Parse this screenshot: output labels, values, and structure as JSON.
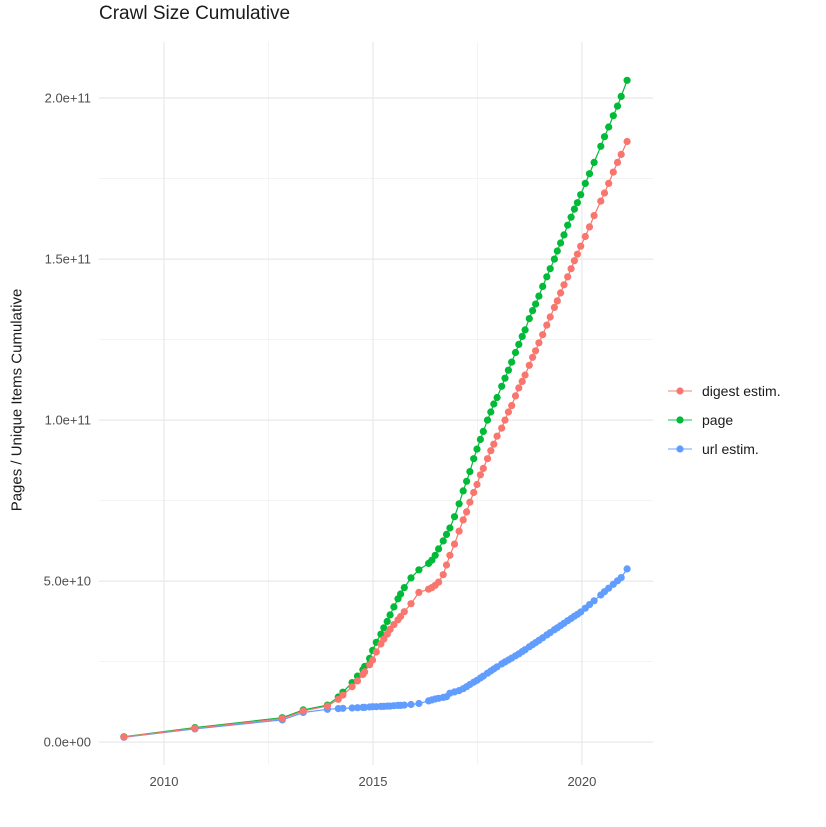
{
  "chart_data": {
    "type": "scatter",
    "title": "Crawl Size Cumulative",
    "xlabel": "",
    "ylabel": "Pages / Unique Items Cumulative",
    "legend_position": "right-center",
    "grid": "major and minor gridlines, light gray on white panel",
    "values_unit": "listed value times 1e9 items",
    "x_domain": [
      2008.445,
      2021.7
    ],
    "y_domain_e9": [
      -7.1,
      217.4
    ],
    "x_ticks": [
      2010,
      2015,
      2020
    ],
    "x_tick_labels": [
      "2010",
      "2015",
      "2020"
    ],
    "x_minor_ticks": [
      2012.5,
      2017.5
    ],
    "y_ticks_e9": [
      0,
      50,
      100,
      150,
      200
    ],
    "y_tick_labels": [
      "0.0e+00",
      "5.0e+10",
      "1.0e+11",
      "1.5e+11",
      "2.0e+11"
    ],
    "y_minor_ticks_e9": [
      25,
      75,
      125,
      175
    ],
    "colors": {
      "axis_text": "#4d4d4d",
      "grid_major": "#e8e8e8",
      "grid_minor": "#f3f3f3"
    },
    "series": [
      {
        "name": "digest estim.",
        "color": "#F8766D",
        "points": [
          [
            2009.04,
            1.6
          ],
          [
            2010.74,
            4.3
          ],
          [
            2012.83,
            7.3
          ],
          [
            2013.33,
            9.7
          ],
          [
            2013.91,
            11.2
          ],
          [
            2014.17,
            13.3
          ],
          [
            2014.28,
            14.6
          ],
          [
            2014.5,
            17.2
          ],
          [
            2014.63,
            19
          ],
          [
            2014.76,
            21
          ],
          [
            2014.8,
            21.8
          ],
          [
            2014.92,
            24
          ],
          [
            2014.99,
            25.5
          ],
          [
            2015.08,
            28
          ],
          [
            2015.19,
            30.5
          ],
          [
            2015.26,
            32
          ],
          [
            2015.34,
            33.5
          ],
          [
            2015.41,
            35
          ],
          [
            2015.5,
            36.5
          ],
          [
            2015.6,
            38
          ],
          [
            2015.66,
            39
          ],
          [
            2015.75,
            40.5
          ],
          [
            2015.91,
            43
          ],
          [
            2016.1,
            46.5
          ],
          [
            2016.33,
            47.5
          ],
          [
            2016.41,
            48
          ],
          [
            2016.49,
            48.7
          ],
          [
            2016.57,
            49.7
          ],
          [
            2016.68,
            52
          ],
          [
            2016.76,
            55
          ],
          [
            2016.84,
            58
          ],
          [
            2016.95,
            61.5
          ],
          [
            2017.06,
            65.5
          ],
          [
            2017.16,
            69
          ],
          [
            2017.24,
            71.5
          ],
          [
            2017.32,
            74.5
          ],
          [
            2017.41,
            77.5
          ],
          [
            2017.49,
            80
          ],
          [
            2017.57,
            83
          ],
          [
            2017.64,
            85
          ],
          [
            2017.74,
            88
          ],
          [
            2017.82,
            90.5
          ],
          [
            2017.89,
            92.5
          ],
          [
            2017.97,
            95
          ],
          [
            2018.08,
            97.5
          ],
          [
            2018.16,
            100
          ],
          [
            2018.24,
            102.5
          ],
          [
            2018.32,
            104.5
          ],
          [
            2018.41,
            107.5
          ],
          [
            2018.49,
            110
          ],
          [
            2018.57,
            112
          ],
          [
            2018.64,
            114
          ],
          [
            2018.74,
            117
          ],
          [
            2018.82,
            119.5
          ],
          [
            2018.89,
            121.5
          ],
          [
            2018.97,
            124
          ],
          [
            2019.06,
            126.5
          ],
          [
            2019.16,
            129.5
          ],
          [
            2019.24,
            132
          ],
          [
            2019.34,
            135
          ],
          [
            2019.41,
            137
          ],
          [
            2019.49,
            139.5
          ],
          [
            2019.57,
            142
          ],
          [
            2019.66,
            144.5
          ],
          [
            2019.74,
            147
          ],
          [
            2019.82,
            149.5
          ],
          [
            2019.89,
            151.5
          ],
          [
            2019.97,
            154
          ],
          [
            2020.08,
            157
          ],
          [
            2020.18,
            160
          ],
          [
            2020.29,
            163.5
          ],
          [
            2020.45,
            168
          ],
          [
            2020.54,
            170.5
          ],
          [
            2020.64,
            173.5
          ],
          [
            2020.75,
            177
          ],
          [
            2020.85,
            180
          ],
          [
            2020.94,
            182.5
          ],
          [
            2021.08,
            186.5
          ]
        ]
      },
      {
        "name": "page",
        "color": "#00BA38",
        "points": [
          [
            2009.04,
            1.7
          ],
          [
            2010.74,
            4.5
          ],
          [
            2012.83,
            7.6
          ],
          [
            2013.33,
            10
          ],
          [
            2013.91,
            11.5
          ],
          [
            2014.17,
            14
          ],
          [
            2014.28,
            15.5
          ],
          [
            2014.5,
            18.5
          ],
          [
            2014.63,
            20.5
          ],
          [
            2014.76,
            22.5
          ],
          [
            2014.8,
            23.5
          ],
          [
            2014.92,
            26
          ],
          [
            2014.99,
            28.5
          ],
          [
            2015.08,
            31
          ],
          [
            2015.19,
            33.5
          ],
          [
            2015.26,
            35.5
          ],
          [
            2015.34,
            37.5
          ],
          [
            2015.41,
            39.5
          ],
          [
            2015.5,
            42
          ],
          [
            2015.6,
            44.5
          ],
          [
            2015.66,
            46
          ],
          [
            2015.75,
            48
          ],
          [
            2015.91,
            51
          ],
          [
            2016.1,
            53.5
          ],
          [
            2016.33,
            55.5
          ],
          [
            2016.41,
            56.5
          ],
          [
            2016.49,
            58
          ],
          [
            2016.57,
            60
          ],
          [
            2016.68,
            62.5
          ],
          [
            2016.76,
            64.5
          ],
          [
            2016.84,
            66.5
          ],
          [
            2016.95,
            70
          ],
          [
            2017.06,
            74
          ],
          [
            2017.16,
            78
          ],
          [
            2017.24,
            81
          ],
          [
            2017.32,
            84
          ],
          [
            2017.41,
            88
          ],
          [
            2017.49,
            91
          ],
          [
            2017.57,
            94
          ],
          [
            2017.64,
            96.5
          ],
          [
            2017.74,
            100
          ],
          [
            2017.82,
            102.5
          ],
          [
            2017.89,
            105
          ],
          [
            2017.97,
            107
          ],
          [
            2018.08,
            110.5
          ],
          [
            2018.16,
            113
          ],
          [
            2018.24,
            115.5
          ],
          [
            2018.32,
            118
          ],
          [
            2018.41,
            121
          ],
          [
            2018.49,
            123.5
          ],
          [
            2018.57,
            126
          ],
          [
            2018.64,
            128
          ],
          [
            2018.74,
            131.5
          ],
          [
            2018.82,
            134
          ],
          [
            2018.89,
            136
          ],
          [
            2018.97,
            138.5
          ],
          [
            2019.06,
            141.5
          ],
          [
            2019.16,
            144.5
          ],
          [
            2019.24,
            147
          ],
          [
            2019.34,
            150
          ],
          [
            2019.41,
            152.5
          ],
          [
            2019.49,
            155
          ],
          [
            2019.57,
            157.5
          ],
          [
            2019.66,
            160.5
          ],
          [
            2019.74,
            163
          ],
          [
            2019.82,
            165.5
          ],
          [
            2019.89,
            167.5
          ],
          [
            2019.97,
            170
          ],
          [
            2020.08,
            173.5
          ],
          [
            2020.18,
            176.5
          ],
          [
            2020.29,
            180
          ],
          [
            2020.45,
            185
          ],
          [
            2020.54,
            188
          ],
          [
            2020.64,
            191
          ],
          [
            2020.75,
            194.5
          ],
          [
            2020.85,
            197.5
          ],
          [
            2020.94,
            200.5
          ],
          [
            2021.08,
            205.5
          ]
        ]
      },
      {
        "name": "url estim.",
        "color": "#619CFF",
        "points": [
          [
            2009.04,
            1.5
          ],
          [
            2010.74,
            4.1
          ],
          [
            2012.83,
            6.9
          ],
          [
            2013.33,
            9.2
          ],
          [
            2013.91,
            10.2
          ],
          [
            2014.17,
            10.4
          ],
          [
            2014.28,
            10.5
          ],
          [
            2014.5,
            10.6
          ],
          [
            2014.63,
            10.7
          ],
          [
            2014.76,
            10.8
          ],
          [
            2014.8,
            10.8
          ],
          [
            2014.92,
            10.9
          ],
          [
            2014.99,
            11
          ],
          [
            2015.08,
            11
          ],
          [
            2015.19,
            11.1
          ],
          [
            2015.26,
            11.1
          ],
          [
            2015.34,
            11.2
          ],
          [
            2015.41,
            11.2
          ],
          [
            2015.5,
            11.3
          ],
          [
            2015.6,
            11.4
          ],
          [
            2015.66,
            11.4
          ],
          [
            2015.75,
            11.5
          ],
          [
            2015.91,
            11.7
          ],
          [
            2016.1,
            12
          ],
          [
            2016.33,
            12.8
          ],
          [
            2016.41,
            13.1
          ],
          [
            2016.49,
            13.4
          ],
          [
            2016.57,
            13.6
          ],
          [
            2016.68,
            13.9
          ],
          [
            2016.76,
            14.1
          ],
          [
            2016.84,
            15.2
          ],
          [
            2016.95,
            15.6
          ],
          [
            2017.06,
            16
          ],
          [
            2017.16,
            16.6
          ],
          [
            2017.24,
            17.2
          ],
          [
            2017.32,
            17.9
          ],
          [
            2017.41,
            18.6
          ],
          [
            2017.49,
            19.2
          ],
          [
            2017.57,
            19.9
          ],
          [
            2017.64,
            20.5
          ],
          [
            2017.74,
            21.4
          ],
          [
            2017.82,
            22.1
          ],
          [
            2017.89,
            22.7
          ],
          [
            2017.97,
            23.4
          ],
          [
            2018.08,
            24.3
          ],
          [
            2018.16,
            24.9
          ],
          [
            2018.24,
            25.5
          ],
          [
            2018.32,
            26.1
          ],
          [
            2018.41,
            26.8
          ],
          [
            2018.49,
            27.4
          ],
          [
            2018.57,
            28.1
          ],
          [
            2018.64,
            28.7
          ],
          [
            2018.74,
            29.6
          ],
          [
            2018.82,
            30.3
          ],
          [
            2018.89,
            30.9
          ],
          [
            2018.97,
            31.6
          ],
          [
            2019.06,
            32.4
          ],
          [
            2019.16,
            33.3
          ],
          [
            2019.24,
            34
          ],
          [
            2019.34,
            34.9
          ],
          [
            2019.41,
            35.5
          ],
          [
            2019.49,
            36.2
          ],
          [
            2019.57,
            36.9
          ],
          [
            2019.66,
            37.7
          ],
          [
            2019.74,
            38.4
          ],
          [
            2019.82,
            39.1
          ],
          [
            2019.89,
            39.7
          ],
          [
            2019.97,
            40.4
          ],
          [
            2020.08,
            41.6
          ],
          [
            2020.18,
            42.7
          ],
          [
            2020.29,
            43.9
          ],
          [
            2020.45,
            45.7
          ],
          [
            2020.54,
            46.7
          ],
          [
            2020.64,
            47.8
          ],
          [
            2020.75,
            49
          ],
          [
            2020.85,
            50.1
          ],
          [
            2020.94,
            51.1
          ],
          [
            2021.08,
            53.8
          ]
        ]
      }
    ]
  }
}
